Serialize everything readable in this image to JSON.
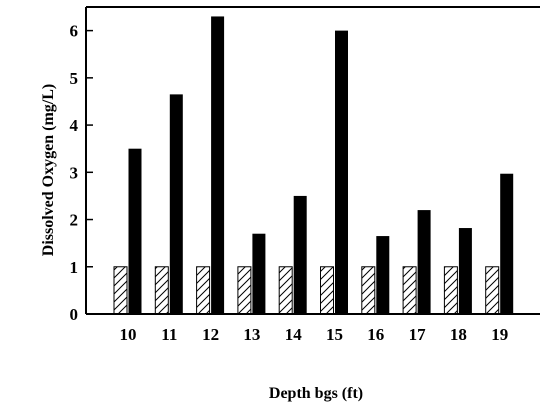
{
  "chart_data": {
    "type": "bar",
    "title": "",
    "xlabel": "Depth bgs (ft)",
    "ylabel": "Dissolved Oxygen (mg/L)",
    "ylim": [
      0,
      6.5
    ],
    "yticks": [
      "0",
      "1",
      "2",
      "3",
      "4",
      "5",
      "6"
    ],
    "categories": [
      "10",
      "11",
      "12",
      "13",
      "14",
      "15",
      "16",
      "17",
      "18",
      "19"
    ],
    "grid": false,
    "legend": "none",
    "series": [
      {
        "values": [
          1.0,
          1.0,
          1.0,
          1.0,
          1.0,
          1.0,
          1.0,
          1.0,
          1.0,
          1.0
        ],
        "style": "hatched"
      },
      {
        "values": [
          3.5,
          4.65,
          6.3,
          1.7,
          2.5,
          6.0,
          1.65,
          2.2,
          1.82,
          2.97
        ],
        "style": "solid"
      }
    ],
    "colors": {
      "solid": "#000000",
      "hatch": "#000000",
      "background": "#ffffff"
    }
  }
}
